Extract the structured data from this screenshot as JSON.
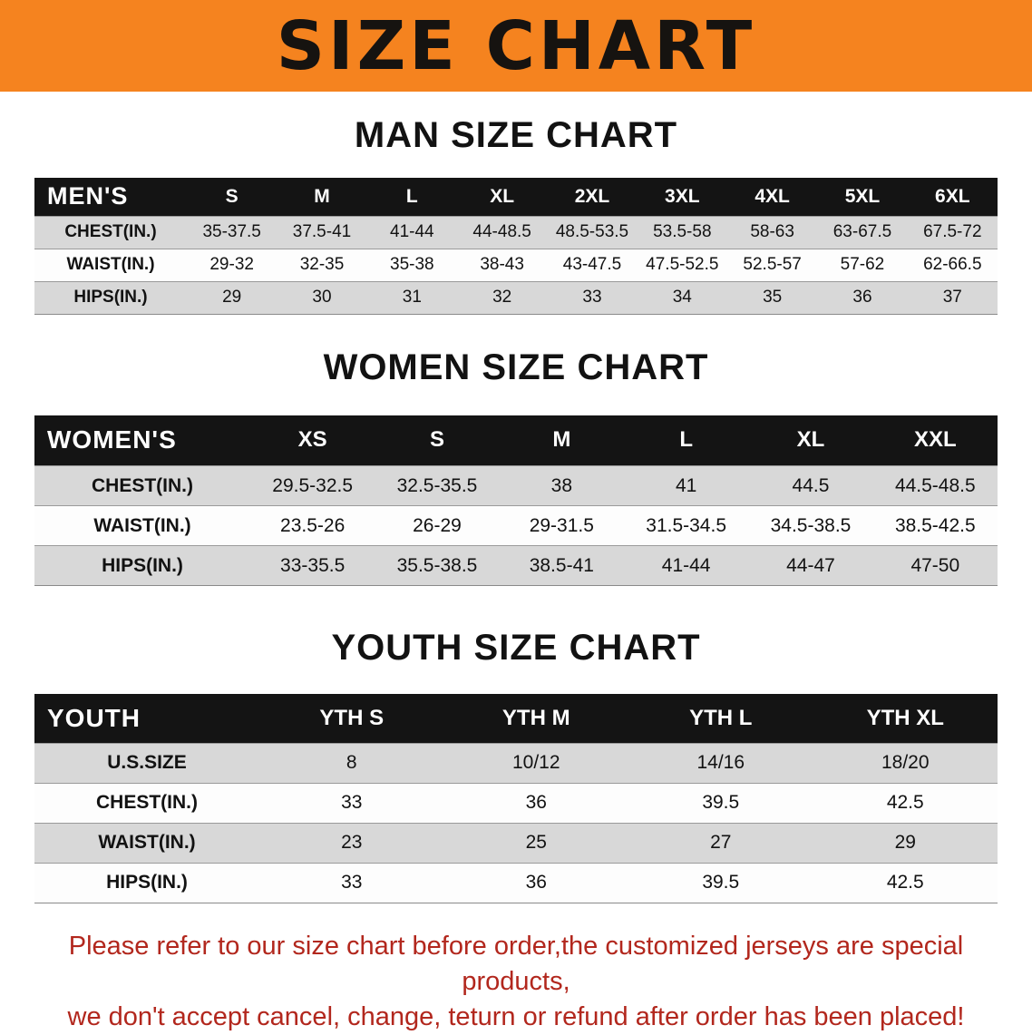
{
  "banner": {
    "title": "SIZE CHART"
  },
  "colors": {
    "banner_bg": "#f5831f",
    "table_header_bg": "#141414",
    "row_stripe": "#d8d8d8",
    "disclaimer_text": "#b2271d"
  },
  "sections": [
    {
      "heading": "MAN SIZE CHART",
      "header_label": "MEN'S",
      "columns": [
        "S",
        "M",
        "L",
        "XL",
        "2XL",
        "3XL",
        "4XL",
        "5XL",
        "6XL"
      ],
      "rows": [
        {
          "label": "CHEST(IN.)",
          "values": [
            "35-37.5",
            "37.5-41",
            "41-44",
            "44-48.5",
            "48.5-53.5",
            "53.5-58",
            "58-63",
            "63-67.5",
            "67.5-72"
          ]
        },
        {
          "label": "WAIST(IN.)",
          "values": [
            "29-32",
            "32-35",
            "35-38",
            "38-43",
            "43-47.5",
            "47.5-52.5",
            "52.5-57",
            "57-62",
            "62-66.5"
          ]
        },
        {
          "label": "HIPS(IN.)",
          "values": [
            "29",
            "30",
            "31",
            "32",
            "33",
            "34",
            "35",
            "36",
            "37"
          ]
        }
      ]
    },
    {
      "heading": "WOMEN SIZE CHART",
      "header_label": "WOMEN'S",
      "columns": [
        "XS",
        "S",
        "M",
        "L",
        "XL",
        "XXL"
      ],
      "rows": [
        {
          "label": "CHEST(IN.)",
          "values": [
            "29.5-32.5",
            "32.5-35.5",
            "38",
            "41",
            "44.5",
            "44.5-48.5"
          ]
        },
        {
          "label": "WAIST(IN.)",
          "values": [
            "23.5-26",
            "26-29",
            "29-31.5",
            "31.5-34.5",
            "34.5-38.5",
            "38.5-42.5"
          ]
        },
        {
          "label": "HIPS(IN.)",
          "values": [
            "33-35.5",
            "35.5-38.5",
            "38.5-41",
            "41-44",
            "44-47",
            "47-50"
          ]
        }
      ]
    },
    {
      "heading": "YOUTH SIZE CHART",
      "header_label": "YOUTH",
      "columns": [
        "YTH S",
        "YTH M",
        "YTH L",
        "YTH XL"
      ],
      "rows": [
        {
          "label": "U.S.SIZE",
          "values": [
            "8",
            "10/12",
            "14/16",
            "18/20"
          ]
        },
        {
          "label": "CHEST(IN.)",
          "values": [
            "33",
            "36",
            "39.5",
            "42.5"
          ]
        },
        {
          "label": "WAIST(IN.)",
          "values": [
            "23",
            "25",
            "27",
            "29"
          ]
        },
        {
          "label": "HIPS(IN.)",
          "values": [
            "33",
            "36",
            "39.5",
            "42.5"
          ]
        }
      ]
    }
  ],
  "disclaimer": {
    "line1": "Please refer to our size chart before order,the customized jerseys are special products,",
    "line2": "we don't accept cancel, change, teturn or refund after order has been placed!"
  }
}
